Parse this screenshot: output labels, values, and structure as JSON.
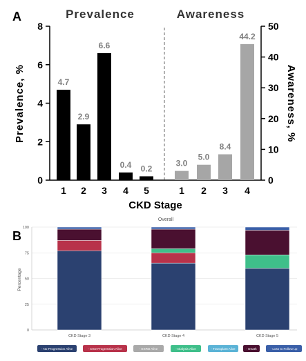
{
  "chart_data": [
    {
      "panel_label": "A",
      "type": "bar",
      "xlabel": "CKD Stage",
      "left": {
        "title": "Prevalence",
        "ylabel": "Prevalence, %",
        "ylim": [
          0,
          8
        ],
        "yticks": [
          "0",
          "2",
          "4",
          "6",
          "8"
        ],
        "categories": [
          "1",
          "2",
          "3",
          "4",
          "5"
        ],
        "values": [
          4.7,
          2.9,
          6.6,
          0.4,
          0.2
        ],
        "labels": [
          "4.7",
          "2.9",
          "6.6",
          "0.4",
          "0.2"
        ],
        "color": "#000000",
        "label_color": "#808080"
      },
      "right": {
        "title": "Awareness",
        "ylabel": "Awareness, %",
        "ylim": [
          0,
          50
        ],
        "yticks": [
          "0",
          "10",
          "20",
          "30",
          "40",
          "50"
        ],
        "categories": [
          "1",
          "2",
          "3",
          "4"
        ],
        "values": [
          3.0,
          5.0,
          8.4,
          44.2
        ],
        "labels": [
          "3.0",
          "5.0",
          "8.4",
          "44.2"
        ],
        "color": "#a6a6a6",
        "label_color": "#808080"
      }
    },
    {
      "panel_label": "B",
      "type": "bar",
      "stacked": true,
      "title": "Overall",
      "ylabel": "Percentage",
      "ylim": [
        0,
        100
      ],
      "yticks": [
        "0",
        "25",
        "50",
        "75",
        "100"
      ],
      "categories": [
        "CKD Stage 3",
        "CKD Stage 4",
        "CKD Stage 5"
      ],
      "legend_position": "bottom",
      "series": [
        {
          "name": "No Progression Alive",
          "color": "#2b4170",
          "values": [
            77,
            65,
            60
          ]
        },
        {
          "name": "CKD Progression Alive",
          "color": "#b8324a",
          "values": [
            10,
            10,
            0
          ]
        },
        {
          "name": "ESRD Alive",
          "color": "#a9a9a9",
          "values": [
            0,
            0,
            0
          ]
        },
        {
          "name": "Dialysis Alive",
          "color": "#3fbf8a",
          "values": [
            0,
            4,
            13
          ]
        },
        {
          "name": "Transplant Alive",
          "color": "#5bb3d6",
          "values": [
            0,
            0,
            0
          ]
        },
        {
          "name": "Death",
          "color": "#4a1030",
          "values": [
            11,
            19,
            24
          ]
        },
        {
          "name": "Loss to Follow-up",
          "color": "#3a5fa8",
          "values": [
            2,
            2,
            3
          ]
        }
      ]
    }
  ]
}
